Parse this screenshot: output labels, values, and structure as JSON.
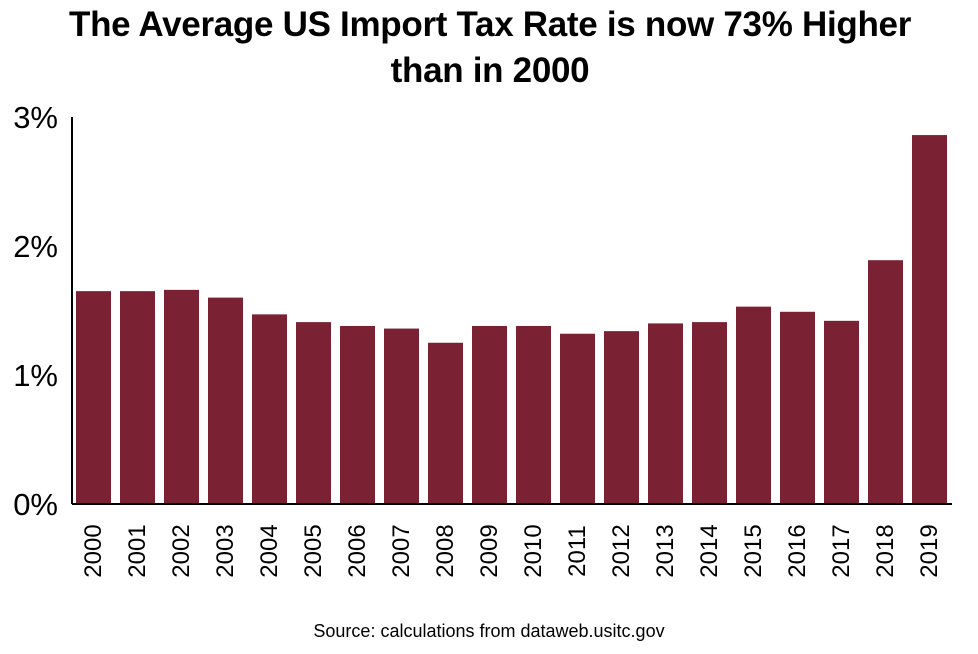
{
  "chart_data": {
    "type": "bar",
    "title": "The Average US Import Tax Rate is now 73% Higher than in 2000",
    "source": "Source: calculations from dataweb.usitc.gov",
    "categories": [
      "2000",
      "2001",
      "2002",
      "2003",
      "2004",
      "2005",
      "2006",
      "2007",
      "2008",
      "2009",
      "2010",
      "2011",
      "2012",
      "2013",
      "2014",
      "2015",
      "2016",
      "2017",
      "2018",
      "2019"
    ],
    "values": [
      1.65,
      1.65,
      1.66,
      1.6,
      1.47,
      1.41,
      1.38,
      1.36,
      1.25,
      1.38,
      1.38,
      1.32,
      1.34,
      1.4,
      1.41,
      1.53,
      1.49,
      1.42,
      1.89,
      2.86
    ],
    "y_ticks": [
      0,
      1,
      2,
      3
    ],
    "y_tick_labels": [
      "0%",
      "1%",
      "2%",
      "3%"
    ],
    "ylim": [
      0,
      3
    ],
    "grid": false,
    "colors": {
      "bar": "#7A2233",
      "axis": "#000000"
    }
  }
}
